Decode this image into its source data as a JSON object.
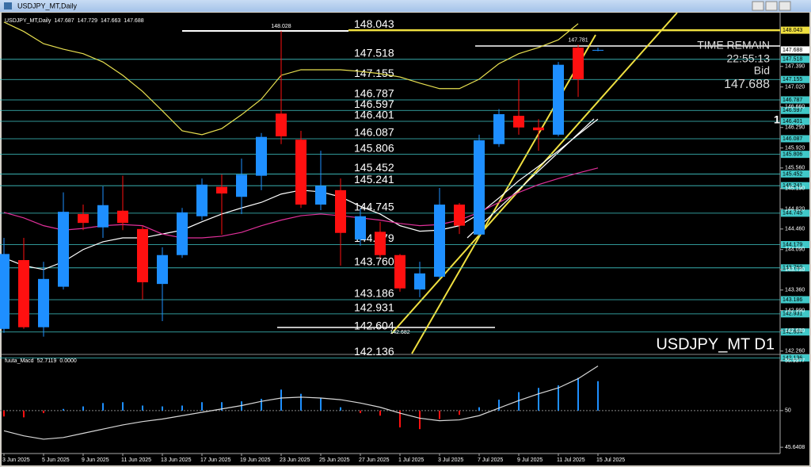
{
  "chart_data": {
    "type": "candlestick",
    "title": "USDJPY_MT,Daily",
    "categories": [
      "3 Jun 2025",
      null,
      "5 Jun 2025",
      null,
      "9 Jun 2025",
      null,
      "11 Jun 2025",
      null,
      "13 Jun 2025",
      null,
      "17 Jun 2025",
      null,
      "19 Jun 2025",
      null,
      "23 Jun 2025",
      null,
      "25 Jun 2025",
      null,
      "27 Jun 2025",
      null,
      "1 Jul 2025",
      null,
      "3 Jul 2025",
      null,
      "7 Jul 2025",
      null,
      "9 Jul 2025",
      null,
      "11 Jul 2025",
      null,
      "15 Jul 2025"
    ],
    "open": [
      142.66,
      143.9,
      142.69,
      143.42,
      144.73,
      144.49,
      144.79,
      144.46,
      143.47,
      143.99,
      144.69,
      145.22,
      145.04,
      145.42,
      146.54,
      146.07,
      144.9,
      145.16,
      144.27,
      144.41,
      143.99,
      143.37,
      143.6,
      144.9,
      144.36,
      145.99,
      146.5,
      146.29,
      146.16,
      147.73,
      147.687
    ],
    "high": [
      144.3,
      144.3,
      143.87,
      145.12,
      144.9,
      145.23,
      145.42,
      144.52,
      144.13,
      144.84,
      145.37,
      145.44,
      145.73,
      146.19,
      148.028,
      146.23,
      145.87,
      145.37,
      144.83,
      144.59,
      144.01,
      143.87,
      145.2,
      144.93,
      146.16,
      146.62,
      147.16,
      146.44,
      147.47,
      147.781,
      147.729
    ],
    "low": [
      142.59,
      142.66,
      142.52,
      143.37,
      144.44,
      144.3,
      144.44,
      143.19,
      142.8,
      143.94,
      144.62,
      144.36,
      144.73,
      145.16,
      145.99,
      144.84,
      144.8,
      143.8,
      144.16,
      143.94,
      143.33,
      143.23,
      143.56,
      144.37,
      144.33,
      145.94,
      146.16,
      145.87,
      146.13,
      146.84,
      147.663
    ],
    "close": [
      144.01,
      142.69,
      143.56,
      144.77,
      144.57,
      144.89,
      144.57,
      143.5,
      143.99,
      144.76,
      145.26,
      145.1,
      145.44,
      146.12,
      146.13,
      144.9,
      145.24,
      144.39,
      144.69,
      143.99,
      143.39,
      143.66,
      144.9,
      144.52,
      146.06,
      146.53,
      146.29,
      146.24,
      147.42,
      147.16,
      147.688
    ],
    "up_color": "#1e8fff",
    "down_color": "#ff1010",
    "lines": [
      {
        "color": "#ffffff",
        "values": [
          143.94,
          143.8,
          143.73,
          143.87,
          144.09,
          144.23,
          144.3,
          144.3,
          144.37,
          144.44,
          144.59,
          144.73,
          144.84,
          144.94,
          145.09,
          145.16,
          145.13,
          145.04,
          144.87,
          144.73,
          144.52,
          144.42,
          144.44,
          144.52,
          144.73,
          145.02,
          145.33,
          145.59,
          145.87,
          146.16,
          146.44
        ]
      },
      {
        "color": "#e0309a",
        "values": [
          144.76,
          144.66,
          144.52,
          144.44,
          144.47,
          144.52,
          144.54,
          144.52,
          144.37,
          144.3,
          144.3,
          144.33,
          144.4,
          144.52,
          144.62,
          144.7,
          144.73,
          144.7,
          144.66,
          144.62,
          144.56,
          144.52,
          144.54,
          144.62,
          144.76,
          144.94,
          145.12,
          145.26,
          145.37,
          145.47,
          145.56
        ]
      },
      {
        "color": "#e8e050",
        "values": [
          148.19,
          148.02,
          147.8,
          147.7,
          147.62,
          147.47,
          147.23,
          146.94,
          146.59,
          146.23,
          146.16,
          146.27,
          146.52,
          146.8,
          147.23,
          147.33,
          147.33,
          147.33,
          147.3,
          147.26,
          147.2,
          147.09,
          146.99,
          146.99,
          147.16,
          147.44,
          147.62,
          147.73,
          147.87,
          148.16,
          null
        ]
      }
    ],
    "levels": [
      148.043,
      147.518,
      147.155,
      146.787,
      146.597,
      146.401,
      146.087,
      145.806,
      145.452,
      145.241,
      144.745,
      144.179,
      {
        "value": 143.76,
        "label": "143.760"
      },
      143.186,
      142.931,
      142.604,
      142.136
    ],
    "level_colors": [
      "#f0e040",
      "#40c8c8",
      "#40c8c8",
      "#40c8c8",
      "#40c8c8",
      "#40c8c8",
      "#40c8c8",
      "#40c8c8",
      "#40c8c8",
      "#40c8c8",
      "#40c8c8",
      "#40c8c8",
      "#40c8c8",
      "#40c8c8",
      "#40c8c8",
      "#40c8c8",
      "#40c8c8"
    ],
    "low_marker": 142.682,
    "ylim": [
      142.2,
      148.33
    ],
    "yticks": [
      {
        "value": 147.39,
        "label": "147.390"
      },
      {
        "value": 147.02,
        "label": "147.020"
      },
      {
        "value": 146.66,
        "label": "146.660"
      },
      {
        "value": 146.29,
        "label": "146.290"
      },
      {
        "value": 145.92,
        "label": "145.920"
      },
      {
        "value": 145.56,
        "label": "145.560"
      },
      {
        "value": 145.19,
        "label": "145.190"
      },
      {
        "value": 144.82,
        "label": "144.820"
      },
      {
        "value": 144.46,
        "label": "144.460"
      },
      {
        "value": 144.09,
        "label": "144.090"
      },
      {
        "value": 143.73,
        "label": "143.730"
      },
      {
        "value": 143.36,
        "label": "143.360"
      },
      {
        "value": 142.99,
        "label": "142.990"
      },
      {
        "value": 142.63,
        "label": "142.630"
      },
      {
        "value": 142.26,
        "label": "142.260"
      }
    ],
    "overlay": {
      "time_remain_label": "TIME REMAIN",
      "time_remain": "22:55:13",
      "bid_label": "Bid",
      "bid": 147.688,
      "symbol_label": "USDJPY_MT D1",
      "marker": "1"
    },
    "macd": {
      "name": "fuuta_Macd",
      "readings": [
        52.7119,
        {
          "value": 0,
          "label": "0.0000"
        }
      ],
      "ylim": [
        44.99,
        56.59
      ],
      "yticks": [
        55.9377,
        50,
        45.6408
      ],
      "baseline": 50,
      "histogram": [
        49.3,
        49.2,
        49.7,
        50.2,
        50.5,
        50.9,
        51.0,
        50.6,
        50.5,
        50.6,
        51.0,
        51.0,
        51.1,
        51.4,
        52.5,
        52.0,
        51.5,
        50.4,
        49.7,
        49.4,
        48.0,
        47.8,
        49.0,
        49.5,
        50.4,
        51.3,
        52.2,
        52.7,
        53.0,
        53.9,
        53.5
      ],
      "signal": [
        47.6,
        47.0,
        46.6,
        46.8,
        47.3,
        47.8,
        48.3,
        48.7,
        49.0,
        49.4,
        49.8,
        50.2,
        50.6,
        51.1,
        51.5,
        51.6,
        51.5,
        51.3,
        50.9,
        50.4,
        49.7,
        49.1,
        48.8,
        48.9,
        49.4,
        50.3,
        51.2,
        52.0,
        52.7,
        53.8,
        55.3
      ],
      "signal_color": "#d8d8d8"
    }
  }
}
